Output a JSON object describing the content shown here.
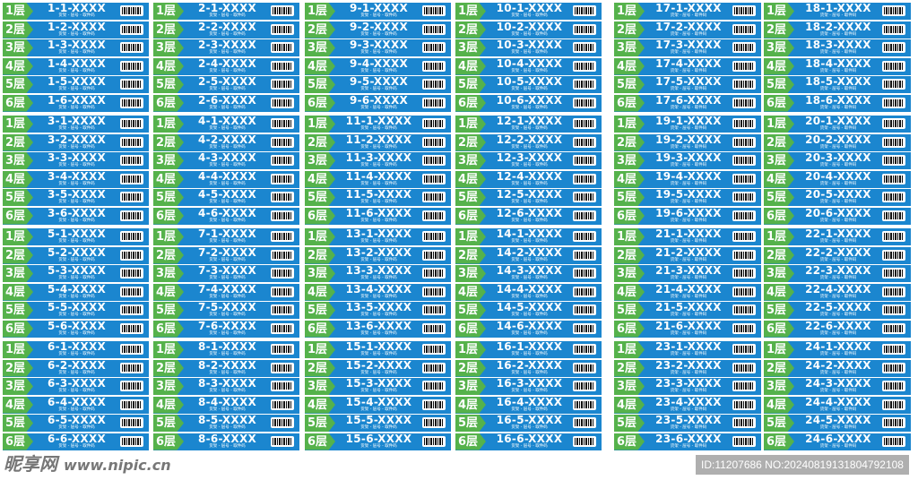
{
  "subtitle": "货架 - 层号 - 取件码",
  "floors": [
    "1层",
    "2层",
    "3层",
    "4层",
    "5层",
    "6层"
  ],
  "colors": {
    "label_blue": "#1b86cf",
    "floor_green": "#55b24b"
  },
  "icons": {
    "barcode": "barcode-icon"
  },
  "left_blocks": [
    [
      "1",
      "2",
      "9",
      "10"
    ],
    [
      "3",
      "4",
      "11",
      "12"
    ],
    [
      "5",
      "7",
      "13",
      "14"
    ],
    [
      "6",
      "8",
      "15",
      "16"
    ]
  ],
  "right_blocks": [
    [
      "17",
      "18"
    ],
    [
      "19",
      "20"
    ],
    [
      "21",
      "22"
    ],
    [
      "23",
      "24"
    ]
  ],
  "code_suffix": "XXXX",
  "watermark": {
    "site": "昵享网",
    "url": "www.nipic.cn",
    "id": "ID:11207686 NO:20240819131804792108"
  }
}
